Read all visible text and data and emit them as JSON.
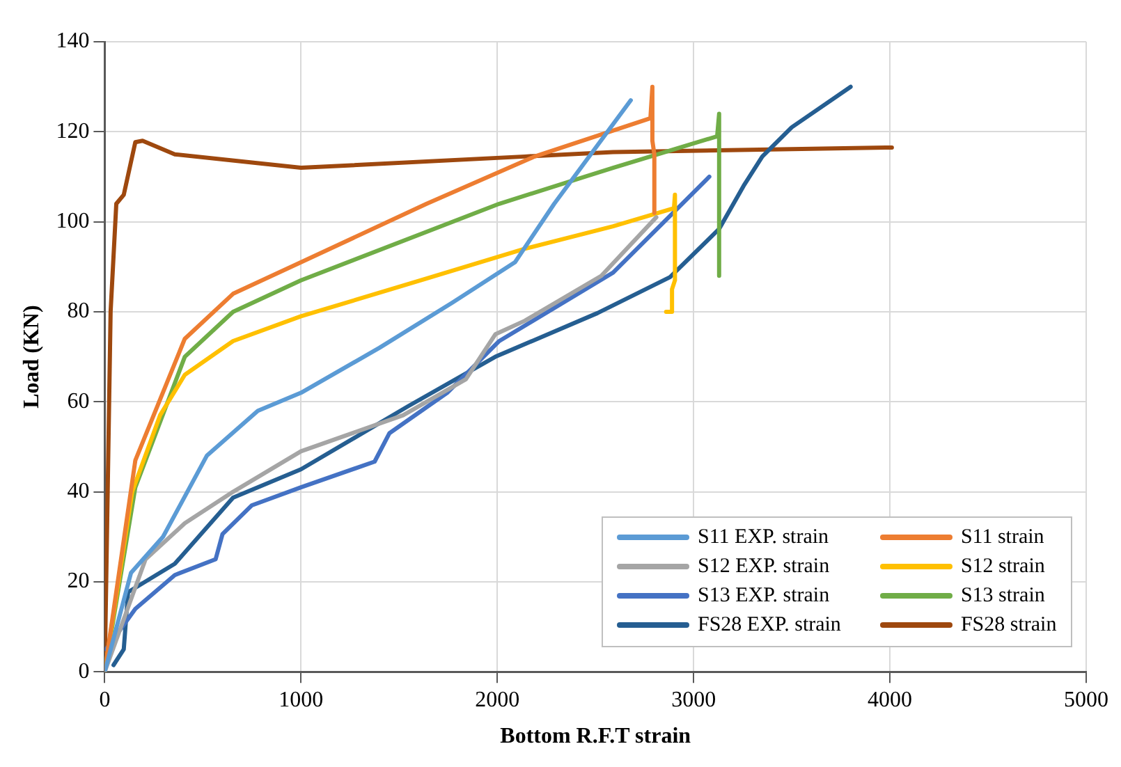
{
  "chart_data": {
    "type": "line",
    "xlabel": "Bottom R.F.T strain",
    "ylabel": "Load (KN)",
    "xlim": [
      0,
      5000
    ],
    "xticks": [
      0,
      1000,
      2000,
      3000,
      4000,
      5000
    ],
    "ylim": [
      0,
      140
    ],
    "yticks": [
      0,
      20,
      40,
      60,
      80,
      100,
      120,
      140
    ],
    "grid": true,
    "legend": "bottom right",
    "marker": "none",
    "line_style": "solid",
    "series": [
      {
        "name": "S11 EXP. strain",
        "color": "#5b9bd5",
        "x": [
          0,
          134,
          297,
          520,
          780,
          1000,
          1400,
          1770,
          2090,
          2290,
          2680
        ],
        "values": [
          0,
          22,
          30,
          48,
          58,
          62,
          72,
          82,
          91,
          104,
          127
        ]
      },
      {
        "name": "S11 strain",
        "color": "#ed7d31",
        "x": [
          0,
          156,
          408,
          654,
          1000,
          1640,
          2190,
          2780,
          2790,
          2790,
          2800,
          2800
        ],
        "values": [
          0,
          47,
          74,
          84,
          91,
          104,
          114.5,
          123,
          130,
          118,
          115,
          102
        ]
      },
      {
        "name": "S12 EXP. strain",
        "color": "#a5a5a5",
        "x": [
          0,
          208,
          408,
          654,
          1000,
          1520,
          1840,
          1990,
          2140,
          2530,
          2810
        ],
        "values": [
          0,
          25,
          33,
          40,
          49,
          57,
          65,
          75,
          78,
          88,
          101
        ]
      },
      {
        "name": "S12 strain",
        "color": "#ffc000",
        "x": [
          0,
          140,
          282,
          408,
          654,
          1000,
          1640,
          2140,
          2590,
          2900,
          2905,
          2905,
          2890,
          2890,
          2860
        ],
        "values": [
          0,
          40,
          57,
          66,
          73.5,
          79,
          87.4,
          94,
          99,
          103,
          106,
          87,
          85,
          80,
          80
        ]
      },
      {
        "name": "S13 EXP. strain",
        "color": "#4472c4",
        "x": [
          7,
          156,
          357,
          565,
          600,
          750,
          1000,
          1375,
          1450,
          1745,
          2010,
          2590,
          3080
        ],
        "values": [
          5,
          14,
          21.5,
          25,
          30.6,
          37,
          41,
          46.7,
          53,
          62,
          73.5,
          88.7,
          110
        ]
      },
      {
        "name": "S13 strain",
        "color": "#70ad47",
        "x": [
          0,
          156,
          408,
          654,
          1000,
          2010,
          2590,
          3120,
          3130,
          3130
        ],
        "values": [
          0,
          41,
          70,
          80,
          87,
          104,
          112,
          119,
          124,
          88
        ]
      },
      {
        "name": "FS28 EXP. strain",
        "color": "#255e91",
        "x": [
          45,
          97,
          119,
          357,
          654,
          1000,
          1545,
          1990,
          2510,
          2880,
          3130,
          3255,
          3350,
          3500,
          3800
        ],
        "values": [
          1.5,
          5,
          17.7,
          24,
          38.7,
          45,
          59,
          70,
          79.7,
          87.7,
          98.4,
          108,
          114.5,
          121,
          130
        ]
      },
      {
        "name": "FS28 strain",
        "color": "#9e480e",
        "x": [
          0,
          30,
          59,
          97,
          156,
          193,
          357,
          1000,
          2140,
          2590,
          4010
        ],
        "values": [
          0,
          80,
          104,
          106,
          117.7,
          118,
          115,
          112,
          114.5,
          115.5,
          116.5
        ]
      }
    ]
  }
}
